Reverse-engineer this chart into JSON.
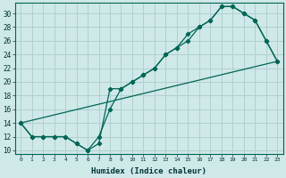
{
  "xlabel": "Humidex (Indice chaleur)",
  "bg_color": "#cfe8e8",
  "grid_color": "#b0d0d0",
  "line_color": "#006655",
  "xlim": [
    -0.5,
    23.5
  ],
  "ylim": [
    9.5,
    31.5
  ],
  "xticks": [
    0,
    1,
    2,
    3,
    4,
    5,
    6,
    7,
    8,
    9,
    10,
    11,
    12,
    13,
    14,
    15,
    16,
    17,
    18,
    19,
    20,
    21,
    22,
    23
  ],
  "yticks": [
    10,
    12,
    14,
    16,
    18,
    20,
    22,
    24,
    26,
    28,
    30
  ],
  "line1_x": [
    0,
    1,
    2,
    3,
    4,
    5,
    6,
    7,
    8,
    9,
    10,
    11,
    12,
    13,
    14,
    15,
    16,
    17,
    18,
    19,
    20,
    21,
    22,
    23
  ],
  "line1_y": [
    14,
    12,
    12,
    12,
    12,
    11,
    10,
    12,
    16,
    19,
    20,
    21,
    22,
    24,
    25,
    26,
    28,
    29,
    31,
    31,
    30,
    29,
    26,
    23
  ],
  "line2_x": [
    0,
    1,
    2,
    3,
    4,
    5,
    6,
    7,
    8,
    9,
    10,
    11,
    12,
    13,
    14,
    15,
    16,
    17,
    18,
    19,
    20,
    21,
    22,
    23
  ],
  "line2_y": [
    14,
    12,
    12,
    12,
    12,
    11,
    10,
    11,
    19,
    19,
    20,
    21,
    22,
    24,
    25,
    27,
    28,
    29,
    31,
    31,
    30,
    29,
    26,
    23
  ],
  "line3_x": [
    0,
    23
  ],
  "line3_y": [
    14,
    23
  ]
}
